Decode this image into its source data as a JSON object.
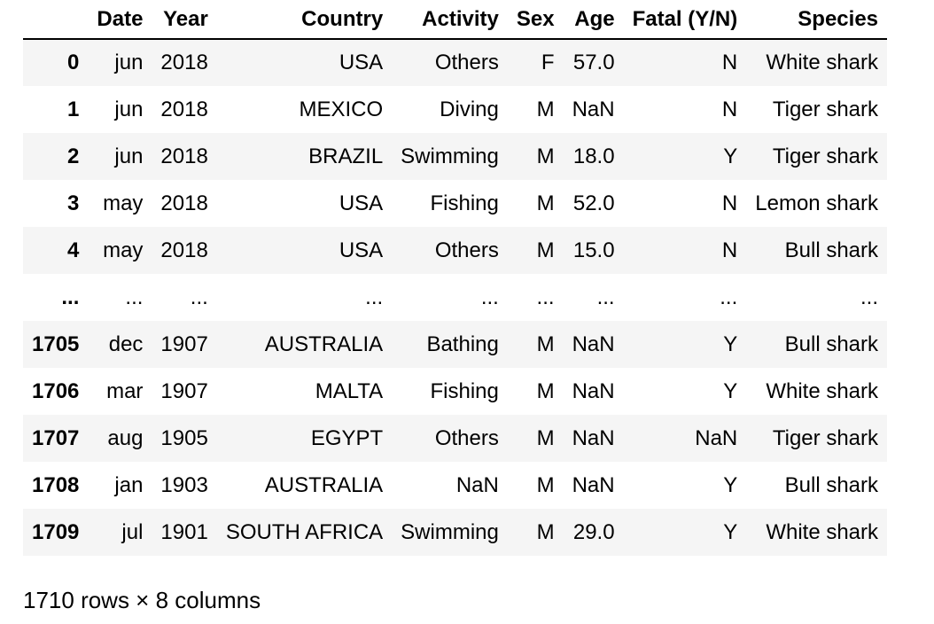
{
  "table": {
    "index_header": "",
    "columns": [
      "Date",
      "Year",
      "Country",
      "Activity",
      "Sex",
      "Age",
      "Fatal (Y/N)",
      "Species"
    ],
    "rows": [
      {
        "index": "0",
        "cells": [
          "jun",
          "2018",
          "USA",
          "Others",
          "F",
          "57.0",
          "N",
          "White shark"
        ]
      },
      {
        "index": "1",
        "cells": [
          "jun",
          "2018",
          "MEXICO",
          "Diving",
          "M",
          "NaN",
          "N",
          "Tiger shark"
        ]
      },
      {
        "index": "2",
        "cells": [
          "jun",
          "2018",
          "BRAZIL",
          "Swimming",
          "M",
          "18.0",
          "Y",
          "Tiger shark"
        ]
      },
      {
        "index": "3",
        "cells": [
          "may",
          "2018",
          "USA",
          "Fishing",
          "M",
          "52.0",
          "N",
          "Lemon shark"
        ]
      },
      {
        "index": "4",
        "cells": [
          "may",
          "2018",
          "USA",
          "Others",
          "M",
          "15.0",
          "N",
          "Bull shark"
        ]
      },
      {
        "index": "...",
        "cells": [
          "...",
          "...",
          "...",
          "...",
          "...",
          "...",
          "...",
          "..."
        ]
      },
      {
        "index": "1705",
        "cells": [
          "dec",
          "1907",
          "AUSTRALIA",
          "Bathing",
          "M",
          "NaN",
          "Y",
          "Bull shark"
        ]
      },
      {
        "index": "1706",
        "cells": [
          "mar",
          "1907",
          "MALTA",
          "Fishing",
          "M",
          "NaN",
          "Y",
          "White shark"
        ]
      },
      {
        "index": "1707",
        "cells": [
          "aug",
          "1905",
          "EGYPT",
          "Others",
          "M",
          "NaN",
          "NaN",
          "Tiger shark"
        ]
      },
      {
        "index": "1708",
        "cells": [
          "jan",
          "1903",
          "AUSTRALIA",
          "NaN",
          "M",
          "NaN",
          "Y",
          "Bull shark"
        ]
      },
      {
        "index": "1709",
        "cells": [
          "jul",
          "1901",
          "SOUTH AFRICA",
          "Swimming",
          "M",
          "29.0",
          "Y",
          "White shark"
        ]
      }
    ]
  },
  "summary": "1710 rows × 8 columns",
  "colors": {
    "row_stripe": "#f5f5f5",
    "background": "#ffffff",
    "text": "#000000"
  }
}
